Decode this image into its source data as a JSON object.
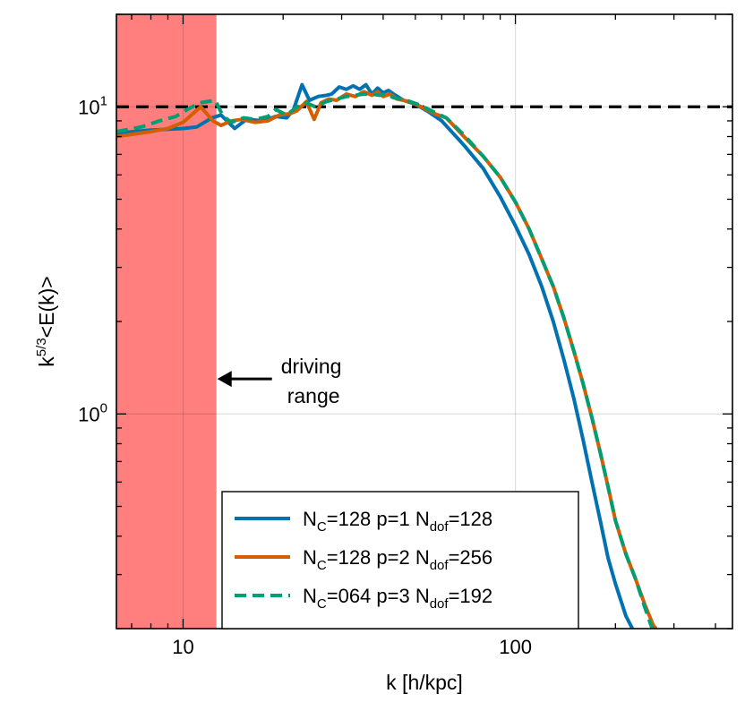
{
  "chart_data": {
    "type": "line",
    "title": "",
    "xlabel": "k [h/kpc]",
    "ylabel_parts": {
      "base": "k",
      "exp": "5/3",
      "rest": "<E(k)>"
    },
    "xscale": "log",
    "yscale": "log",
    "xlim": [
      6.3,
      450
    ],
    "ylim": [
      0.2,
      20
    ],
    "x_ticks": [
      {
        "value": 10,
        "label": "10"
      },
      {
        "value": 100,
        "label": "100"
      }
    ],
    "y_ticks": [
      {
        "value": 1,
        "base": "10",
        "exp": "0"
      },
      {
        "value": 10,
        "base": "10",
        "exp": "1"
      }
    ],
    "grid": true,
    "reference_line": {
      "y": 10,
      "style": "dashed",
      "color": "#000000"
    },
    "driving_range": {
      "x0": 6.3,
      "x1": 12.6,
      "color": "#ff7f7f"
    },
    "annotation": {
      "lines": [
        "driving",
        "range"
      ],
      "arrow_to_x": 12.6,
      "arrow_at_y": 1.3
    },
    "legend": {
      "position": "bottom-center",
      "entries": [
        {
          "series": 0,
          "text_parts": [
            "N",
            "C",
            "=128 p=1 N",
            "dof",
            "=128"
          ]
        },
        {
          "series": 1,
          "text_parts": [
            "N",
            "C",
            "=128 p=2 N",
            "dof",
            "=256"
          ]
        },
        {
          "series": 2,
          "text_parts": [
            "N",
            "C",
            "=064 p=3 N",
            "dof",
            "=192"
          ]
        }
      ]
    },
    "series": [
      {
        "color": "#0072b2",
        "dash": "solid",
        "points": [
          [
            6.3,
            8.2
          ],
          [
            8,
            8.4
          ],
          [
            10,
            8.5
          ],
          [
            11,
            8.6
          ],
          [
            12.2,
            9.2
          ],
          [
            13,
            9.4
          ],
          [
            14.3,
            8.5
          ],
          [
            15.5,
            9.1
          ],
          [
            17.5,
            9.0
          ],
          [
            19,
            9.3
          ],
          [
            20.5,
            9.2
          ],
          [
            21.5,
            9.8
          ],
          [
            22.8,
            11.8
          ],
          [
            24,
            10.5
          ],
          [
            25.5,
            10.8
          ],
          [
            27,
            10.9
          ],
          [
            28,
            11.0
          ],
          [
            29.5,
            11.6
          ],
          [
            31,
            11.4
          ],
          [
            32.5,
            11.7
          ],
          [
            34,
            11.4
          ],
          [
            35.5,
            11.8
          ],
          [
            37,
            11.0
          ],
          [
            38.5,
            11.5
          ],
          [
            40,
            11.1
          ],
          [
            41.5,
            11.3
          ],
          [
            43,
            11.0
          ],
          [
            46,
            10.5
          ],
          [
            50,
            10.2
          ],
          [
            55,
            9.6
          ],
          [
            60,
            9.0
          ],
          [
            70,
            7.5
          ],
          [
            80,
            6.3
          ],
          [
            90,
            5.1
          ],
          [
            100,
            4.1
          ],
          [
            110,
            3.3
          ],
          [
            120,
            2.6
          ],
          [
            130,
            2.0
          ],
          [
            140,
            1.5
          ],
          [
            150,
            1.12
          ],
          [
            160,
            0.82
          ],
          [
            170,
            0.6
          ],
          [
            180,
            0.45
          ],
          [
            190,
            0.34
          ],
          [
            200,
            0.28
          ],
          [
            215,
            0.22
          ],
          [
            225,
            0.2
          ]
        ]
      },
      {
        "color": "#d55e00",
        "dash": "solid",
        "points": [
          [
            6.3,
            8.0
          ],
          [
            8,
            8.3
          ],
          [
            9,
            8.5
          ],
          [
            10,
            8.9
          ],
          [
            11.3,
            10.0
          ],
          [
            12.3,
            9.0
          ],
          [
            13,
            8.7
          ],
          [
            14,
            9.0
          ],
          [
            15,
            9.1
          ],
          [
            16.5,
            8.9
          ],
          [
            18,
            9.0
          ],
          [
            19.5,
            9.4
          ],
          [
            21,
            9.5
          ],
          [
            22,
            9.7
          ],
          [
            23.5,
            10.4
          ],
          [
            24.8,
            9.1
          ],
          [
            26,
            10.3
          ],
          [
            27.5,
            10.6
          ],
          [
            29,
            10.5
          ],
          [
            31,
            11.0
          ],
          [
            33,
            10.8
          ],
          [
            35,
            11.2
          ],
          [
            37,
            10.9
          ],
          [
            38.5,
            11.2
          ],
          [
            40,
            10.8
          ],
          [
            42,
            11.0
          ],
          [
            44,
            10.6
          ],
          [
            48,
            10.4
          ],
          [
            52,
            10.0
          ],
          [
            57,
            9.5
          ],
          [
            62,
            9.2
          ],
          [
            70,
            8.0
          ],
          [
            80,
            6.9
          ],
          [
            90,
            5.9
          ],
          [
            100,
            4.9
          ],
          [
            110,
            4.0
          ],
          [
            120,
            3.2
          ],
          [
            130,
            2.6
          ],
          [
            140,
            2.05
          ],
          [
            150,
            1.6
          ],
          [
            160,
            1.25
          ],
          [
            170,
            0.97
          ],
          [
            180,
            0.75
          ],
          [
            190,
            0.58
          ],
          [
            200,
            0.45
          ],
          [
            215,
            0.35
          ],
          [
            230,
            0.29
          ],
          [
            245,
            0.24
          ],
          [
            260,
            0.205
          ],
          [
            265,
            0.2
          ]
        ]
      },
      {
        "color": "#009e73",
        "dash": "dashed",
        "points": [
          [
            6.3,
            8.3
          ],
          [
            7.5,
            8.6
          ],
          [
            8.5,
            9.0
          ],
          [
            9.5,
            9.3
          ],
          [
            10.3,
            9.8
          ],
          [
            11.2,
            10.3
          ],
          [
            12.5,
            10.5
          ],
          [
            13.2,
            9.3
          ],
          [
            14,
            8.9
          ],
          [
            15.2,
            9.2
          ],
          [
            16.5,
            9.1
          ],
          [
            18,
            9.3
          ],
          [
            19,
            9.8
          ],
          [
            20.5,
            9.4
          ],
          [
            22,
            10.0
          ],
          [
            23.5,
            10.3
          ],
          [
            25,
            10.0
          ],
          [
            27,
            10.4
          ],
          [
            29,
            10.6
          ],
          [
            31,
            10.8
          ],
          [
            33,
            10.9
          ],
          [
            35,
            11.0
          ],
          [
            37,
            11.0
          ],
          [
            39,
            10.9
          ],
          [
            41,
            11.0
          ],
          [
            43,
            10.7
          ],
          [
            47,
            10.5
          ],
          [
            52,
            10.1
          ],
          [
            57,
            9.6
          ],
          [
            62,
            9.2
          ],
          [
            70,
            8.1
          ],
          [
            80,
            6.9
          ],
          [
            90,
            5.9
          ],
          [
            100,
            4.9
          ],
          [
            110,
            4.0
          ],
          [
            120,
            3.2
          ],
          [
            130,
            2.6
          ],
          [
            140,
            2.05
          ],
          [
            150,
            1.6
          ],
          [
            160,
            1.25
          ],
          [
            170,
            0.97
          ],
          [
            180,
            0.75
          ],
          [
            190,
            0.58
          ],
          [
            200,
            0.45
          ],
          [
            215,
            0.35
          ],
          [
            230,
            0.29
          ],
          [
            245,
            0.235
          ],
          [
            258,
            0.2
          ]
        ]
      }
    ]
  }
}
